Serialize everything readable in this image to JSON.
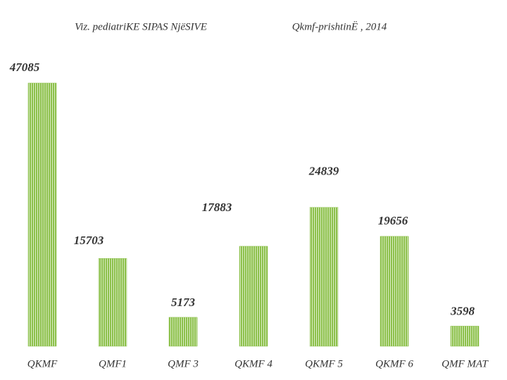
{
  "chart_data": {
    "type": "bar",
    "title": "Viz. pediatriKE SIPAS NjëSIVE",
    "subtitle": "Qkmf-prishtinË , 2014",
    "categories": [
      "QKMF",
      "QMF1",
      "QMF 3",
      "QKMF 4",
      "QKMF 5",
      "QKMF 6",
      "QMF MAT"
    ],
    "values": [
      47085,
      15703,
      5173,
      17883,
      24839,
      19656,
      3598
    ],
    "color": "#8cc04a"
  }
}
